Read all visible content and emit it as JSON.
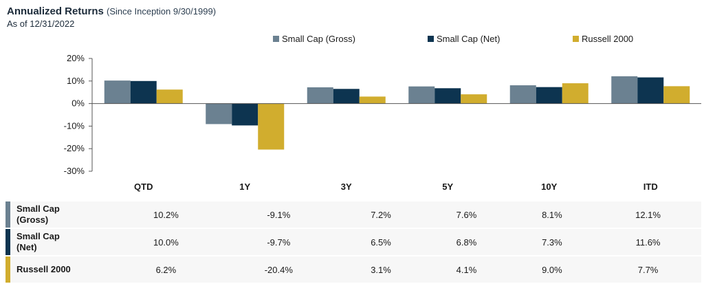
{
  "title": {
    "main": "Annualized Returns",
    "sub": "(Since Inception 9/30/1999)",
    "asof": "As of 12/31/2022"
  },
  "colors": {
    "gross": "#6b8191",
    "net": "#0d3450",
    "russell": "#d1ad2e",
    "zero_line": "#555555",
    "grid": "#d9d9d9"
  },
  "chart_data": {
    "type": "bar",
    "title": "Annualized Returns",
    "categories": [
      "QTD",
      "1Y",
      "3Y",
      "5Y",
      "10Y",
      "ITD"
    ],
    "series": [
      {
        "name": "Small Cap (Gross)",
        "values": [
          10.2,
          -9.1,
          7.2,
          7.6,
          8.1,
          12.1
        ]
      },
      {
        "name": "Small Cap (Net)",
        "values": [
          10.0,
          -9.7,
          6.5,
          6.8,
          7.3,
          11.6
        ]
      },
      {
        "name": "Russell 2000",
        "values": [
          6.2,
          -20.4,
          3.1,
          4.1,
          9.0,
          7.7
        ]
      }
    ],
    "yticks": [
      "20%",
      "10%",
      "0%",
      "-10%",
      "-20%",
      "-30%"
    ],
    "ytick_values": [
      20,
      10,
      0,
      -10,
      -20,
      -30
    ],
    "ylim": [
      -30,
      20
    ],
    "xlabel": "",
    "ylabel": "",
    "legend_position": "top-right"
  },
  "table": {
    "rows": [
      {
        "label": "Small Cap (Gross)",
        "label_line1": "Small Cap",
        "label_line2": "(Gross)",
        "values": [
          "10.2%",
          "-9.1%",
          "7.2%",
          "7.6%",
          "8.1%",
          "12.1%"
        ]
      },
      {
        "label": "Small Cap (Net)",
        "label_line1": "Small Cap",
        "label_line2": "(Net)",
        "values": [
          "10.0%",
          "-9.7%",
          "6.5%",
          "6.8%",
          "7.3%",
          "11.6%"
        ]
      },
      {
        "label": "Russell 2000",
        "label_line1": "Russell 2000",
        "label_line2": "",
        "values": [
          "6.2%",
          "-20.4%",
          "3.1%",
          "4.1%",
          "9.0%",
          "7.7%"
        ]
      }
    ]
  }
}
